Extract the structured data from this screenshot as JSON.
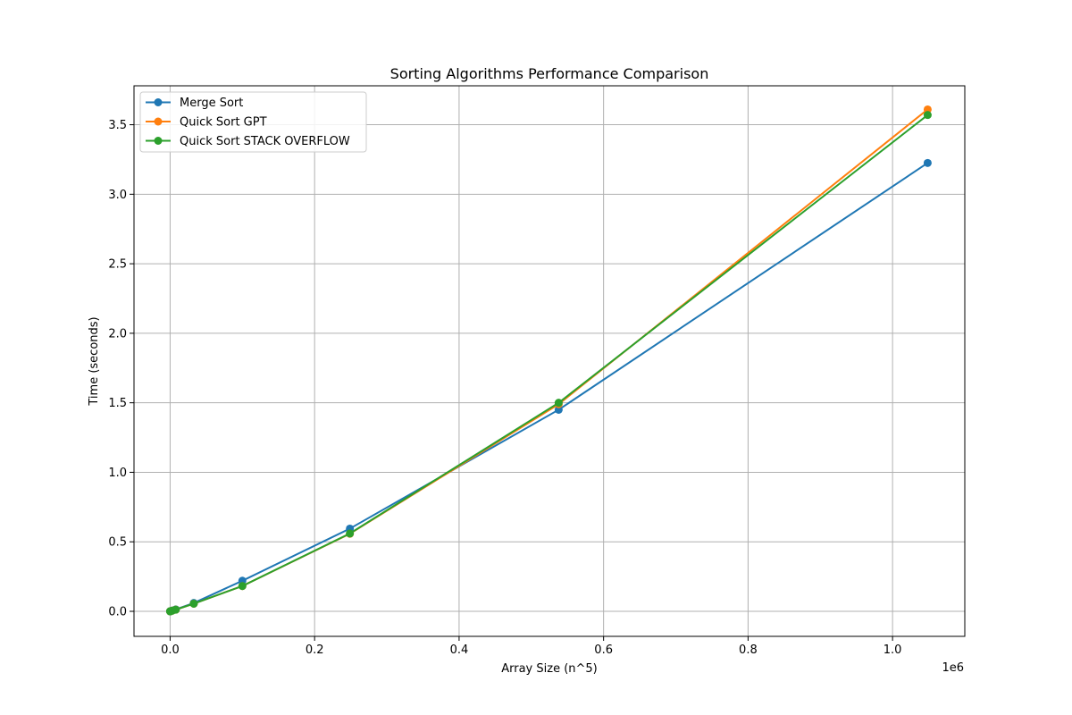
{
  "chart_data": {
    "type": "line",
    "title": "Sorting Algorithms Performance Comparison",
    "xlabel": "Array Size (n^5)",
    "ylabel": "Time (seconds)",
    "x_offset_text": "1e6",
    "x": [
      1,
      32,
      243,
      1024,
      3125,
      7776,
      32768,
      100000,
      248832,
      537824,
      1048576
    ],
    "xlim": [
      -50000,
      1100000
    ],
    "ylim": [
      -0.18,
      3.78
    ],
    "xticks": [
      0,
      200000,
      400000,
      600000,
      800000,
      1000000
    ],
    "xtick_labels": [
      "0.0",
      "0.2",
      "0.4",
      "0.6",
      "0.8",
      "1.0"
    ],
    "yticks": [
      0,
      0.5,
      1.0,
      1.5,
      2.0,
      2.5,
      3.0,
      3.5
    ],
    "ytick_labels": [
      "0.0",
      "0.5",
      "1.0",
      "1.5",
      "2.0",
      "2.5",
      "3.0",
      "3.5"
    ],
    "grid": true,
    "legend_position": "top-left",
    "series": [
      {
        "name": "Merge Sort",
        "color": "#1f77b4",
        "values": [
          0.0,
          0.0,
          0.0,
          0.002,
          0.006,
          0.014,
          0.06,
          0.22,
          0.595,
          1.45,
          3.225
        ]
      },
      {
        "name": "Quick Sort GPT",
        "color": "#ff7f0e",
        "values": [
          0.0,
          0.0,
          0.0,
          0.002,
          0.005,
          0.012,
          0.055,
          0.182,
          0.558,
          1.49,
          3.61
        ]
      },
      {
        "name": "Quick Sort STACK OVERFLOW",
        "color": "#2ca02c",
        "values": [
          0.0,
          0.0,
          0.0,
          0.002,
          0.005,
          0.012,
          0.055,
          0.182,
          0.56,
          1.5,
          3.57
        ]
      }
    ]
  }
}
